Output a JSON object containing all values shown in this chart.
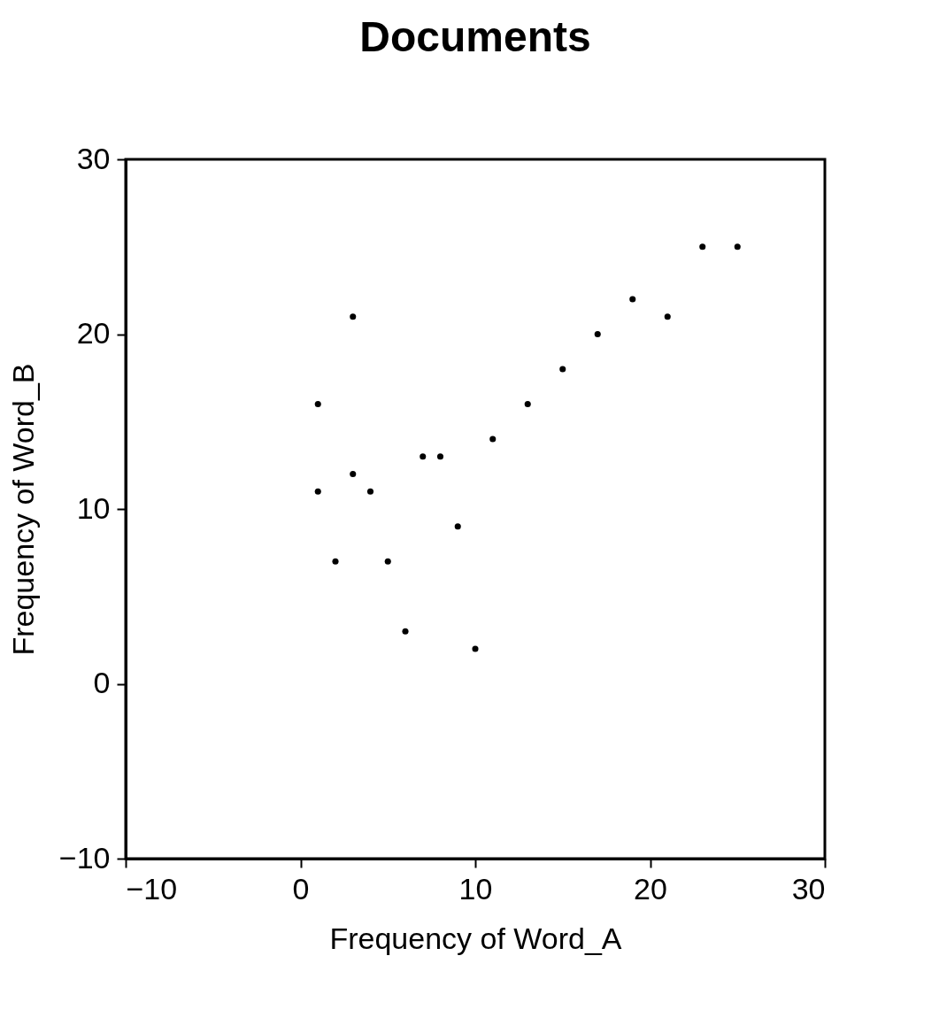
{
  "chart_data": {
    "type": "scatter",
    "title": "Documents",
    "xlabel": "Frequency of Word_A",
    "ylabel": "Frequency of Word_B",
    "x": [
      1,
      1,
      2,
      3,
      3,
      4,
      5,
      6,
      7,
      8,
      9,
      10,
      11,
      13,
      15,
      17,
      19,
      21,
      23,
      25
    ],
    "series": [
      {
        "color": "#000000",
        "values": [
          16,
          11,
          7,
          21,
          12,
          11,
          7,
          3,
          13,
          13,
          9,
          2,
          14,
          16,
          18,
          20,
          22,
          21,
          25,
          25
        ]
      }
    ],
    "xlim": [
      -10,
      30
    ],
    "ylim": [
      -10,
      30
    ],
    "xticks": [
      -10,
      0,
      10,
      20,
      30
    ],
    "yticks": [
      -10,
      0,
      10,
      20,
      30
    ],
    "marker": "circle",
    "grid": false
  }
}
